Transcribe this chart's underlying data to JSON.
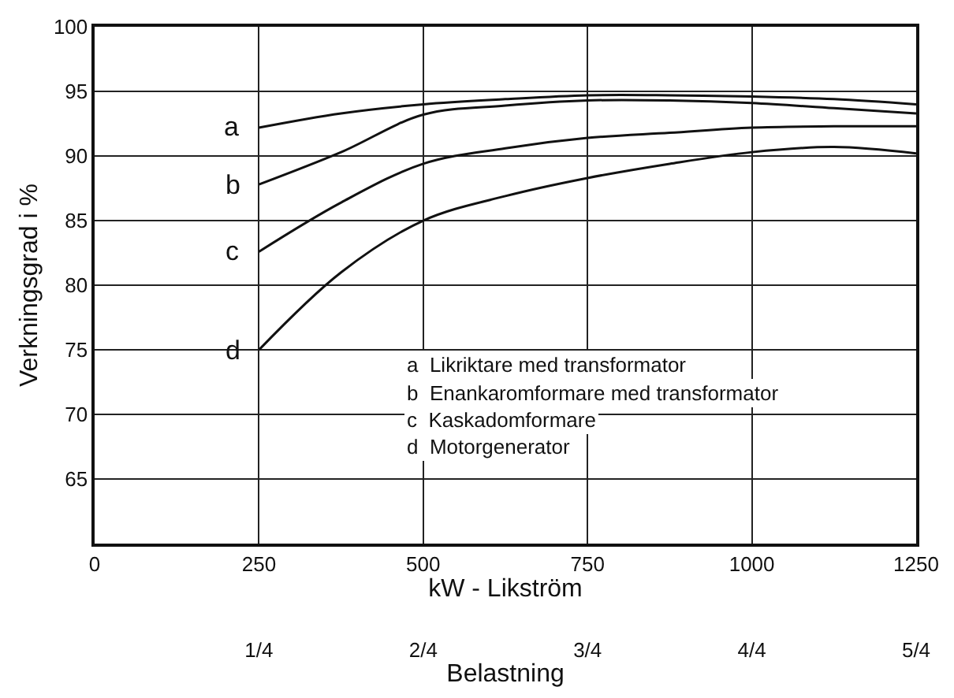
{
  "chart_data": {
    "type": "line",
    "xlabel": "kW - Likström",
    "ylabel": "Verkningsgrad i %",
    "x2label": "Belastning",
    "x": [
      250,
      375,
      500,
      625,
      750,
      875,
      1000,
      1125,
      1250
    ],
    "series": [
      {
        "name": "a",
        "color": "#111111",
        "values": [
          92.2,
          93.3,
          94.0,
          94.4,
          94.7,
          94.7,
          94.6,
          94.4,
          94.0
        ]
      },
      {
        "name": "b",
        "color": "#111111",
        "values": [
          87.8,
          90.3,
          93.2,
          93.9,
          94.3,
          94.3,
          94.1,
          93.7,
          93.3
        ]
      },
      {
        "name": "c",
        "color": "#111111",
        "values": [
          82.6,
          86.4,
          89.4,
          90.6,
          91.4,
          91.8,
          92.2,
          92.3,
          92.3
        ]
      },
      {
        "name": "d",
        "color": "#111111",
        "values": [
          75.0,
          81.0,
          85.0,
          86.9,
          88.3,
          89.4,
          90.3,
          90.7,
          90.2
        ]
      }
    ],
    "xlim": [
      0,
      1250
    ],
    "xticks": [
      0,
      250,
      500,
      750,
      1000,
      1250
    ],
    "ylim": [
      60,
      100
    ],
    "yticks": [
      65,
      70,
      75,
      80,
      85,
      90,
      95,
      100
    ],
    "x2lim": [
      0,
      1.25
    ],
    "x2ticks": [
      {
        "value": 0.25,
        "label": "1/4"
      },
      {
        "value": 0.5,
        "label": "2/4"
      },
      {
        "value": 0.75,
        "label": "3/4"
      },
      {
        "value": 1,
        "label": "4/4"
      },
      {
        "value": 1.25,
        "label": "5/4"
      }
    ],
    "annotations": [
      "a  Likriktare med transformator",
      "b  Enankaromformare med transformator",
      "c  Kaskadomformare",
      "d  Motorgenerator"
    ],
    "grid": true,
    "legend": false,
    "marker": "none",
    "line_style": "solid"
  }
}
